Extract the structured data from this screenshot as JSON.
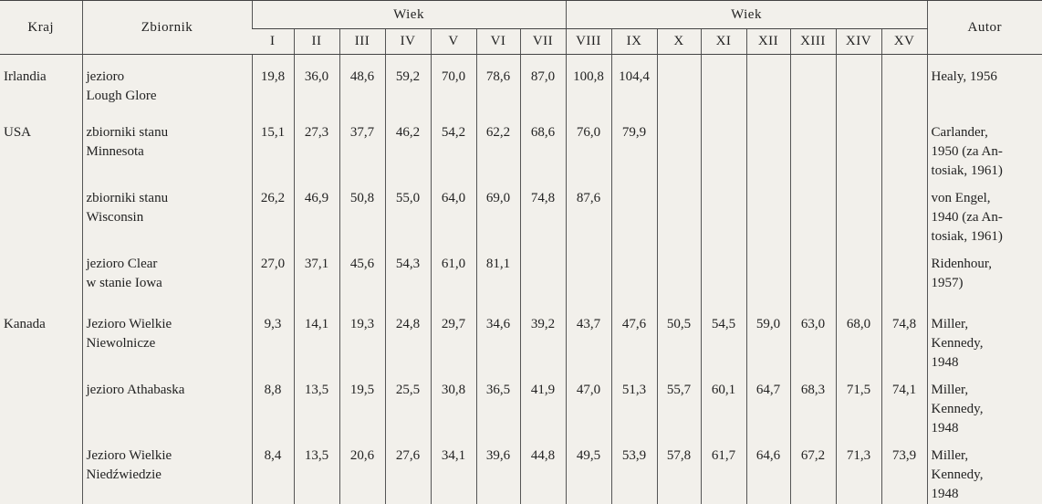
{
  "table": {
    "header": {
      "country": "Kraj",
      "reservoir": "Zbiornik",
      "age_groups": [
        "Wiek",
        "Wiek"
      ],
      "ages": [
        "I",
        "II",
        "III",
        "IV",
        "V",
        "VI",
        "VII",
        "VIII",
        "IX",
        "X",
        "XI",
        "XII",
        "XIII",
        "XIV",
        "XV"
      ],
      "author": "Autor"
    },
    "rows": [
      {
        "country": "Irlandia",
        "reservoir": "jezioro\nLough Glore",
        "values": [
          "19,8",
          "36,0",
          "48,6",
          "59,2",
          "70,0",
          "78,6",
          "87,0",
          "100,8",
          "104,4"
        ],
        "author": "Healy, 1956"
      },
      {
        "country": "USA",
        "reservoir": "zbiorniki stanu\nMinnesota",
        "values": [
          "15,1",
          "27,3",
          "37,7",
          "46,2",
          "54,2",
          "62,2",
          "68,6",
          "76,0",
          "79,9"
        ],
        "author": "Carlander,\n1950 (za An-\ntosiak, 1961)"
      },
      {
        "reservoir": "zbiorniki stanu\nWisconsin",
        "values": [
          "26,2",
          "46,9",
          "50,8",
          "55,0",
          "64,0",
          "69,0",
          "74,8",
          "87,6"
        ],
        "author": "von Engel,\n1940 (za An-\ntosiak, 1961)"
      },
      {
        "reservoir": "jezioro Clear\nw stanie Iowa",
        "values": [
          "27,0",
          "37,1",
          "45,6",
          "54,3",
          "61,0",
          "81,1"
        ],
        "author": "Ridenhour,\n1957)"
      },
      {
        "country": "Kanada",
        "reservoir": "Jezioro Wielkie\nNiewolnicze",
        "values": [
          "9,3",
          "14,1",
          "19,3",
          "24,8",
          "29,7",
          "34,6",
          "39,2",
          "43,7",
          "47,6",
          "50,5",
          "54,5",
          "59,0",
          "63,0",
          "68,0",
          "74,8"
        ],
        "author": "Miller,\nKennedy,\n1948"
      },
      {
        "reservoir": "jezioro Athabaska",
        "values": [
          "8,8",
          "13,5",
          "19,5",
          "25,5",
          "30,8",
          "36,5",
          "41,9",
          "47,0",
          "51,3",
          "55,7",
          "60,1",
          "64,7",
          "68,3",
          "71,5",
          "74,1"
        ],
        "author": "Miller,\nKennedy,\n1948"
      },
      {
        "reservoir": "Jezioro Wielkie\nNiedźwiedzie",
        "values": [
          "8,4",
          "13,5",
          "20,6",
          "27,6",
          "34,1",
          "39,6",
          "44,8",
          "49,5",
          "53,9",
          "57,8",
          "61,7",
          "64,6",
          "67,2",
          "71,3",
          "73,9"
        ],
        "author": "Miller,\nKennedy,\n1948"
      }
    ]
  }
}
